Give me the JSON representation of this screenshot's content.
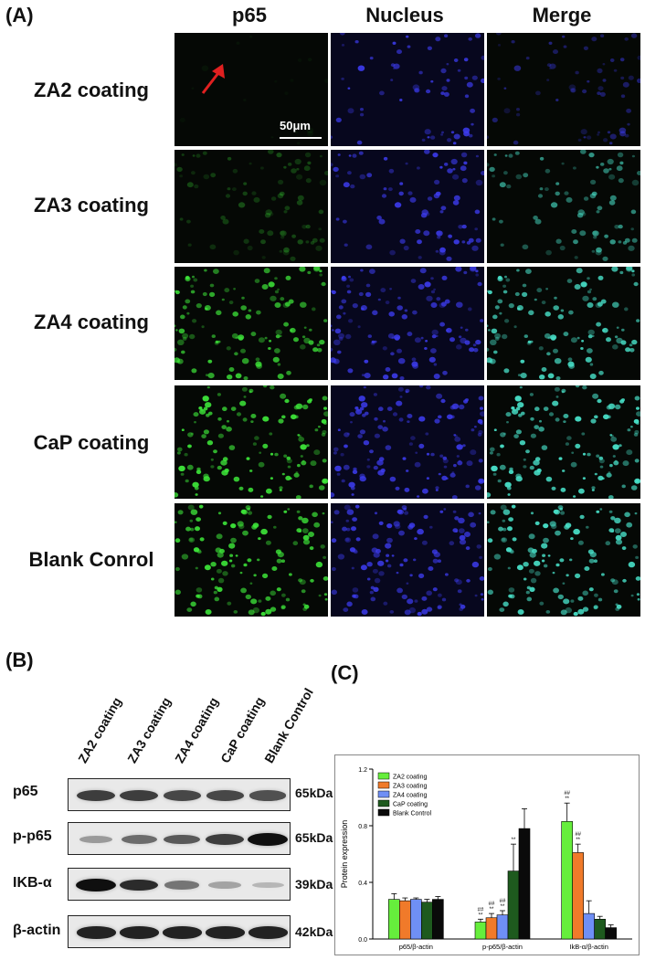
{
  "panelA": {
    "label": "(A)",
    "columns": [
      "p65",
      "Nucleus",
      "Merge"
    ],
    "rows": [
      "ZA2 coating",
      "ZA3 coating",
      "ZA4 coating",
      "CaP coating",
      "Blank Conrol"
    ],
    "scale_bar": "50μm",
    "p65_intensity": [
      0.05,
      0.3,
      0.85,
      0.95,
      0.95
    ],
    "colors": {
      "p65": "#3ee83a",
      "nucleus": "#3d3cf0",
      "merge": "#48e0c8",
      "arrow": "#e02020"
    }
  },
  "panelB": {
    "label": "(B)",
    "lanes": [
      "ZA2 coating",
      "ZA3 coating",
      "ZA4 coating",
      "CaP coating",
      "Blank Control"
    ],
    "blots": [
      {
        "name": "p65",
        "kda": "65kDa",
        "intensity": [
          0.75,
          0.75,
          0.7,
          0.7,
          0.65
        ]
      },
      {
        "name": "p-p65",
        "kda": "65kDa",
        "intensity": [
          0.25,
          0.5,
          0.6,
          0.75,
          1.0
        ]
      },
      {
        "name": "IKB-α",
        "kda": "39kDa",
        "intensity": [
          1.0,
          0.85,
          0.45,
          0.2,
          0.1
        ]
      },
      {
        "name": "β-actin",
        "kda": "42kDa",
        "intensity": [
          0.9,
          0.9,
          0.9,
          0.9,
          0.9
        ]
      }
    ]
  },
  "panelC": {
    "label": "(C)"
  },
  "chart_data": {
    "type": "bar",
    "categories": [
      "p65/β-actin",
      "p-p65/β-actin",
      "IkB-α/β-actin"
    ],
    "ylabel": "Protein expression",
    "ylim": [
      0,
      1.2
    ],
    "yticks": [
      "0.0",
      "0.4",
      "0.8",
      "1.2"
    ],
    "legend_position": "top-left",
    "series": [
      {
        "name": "ZA2 coating",
        "color": "#66ee3c",
        "values": [
          0.28,
          0.12,
          0.83
        ],
        "errors": [
          0.04,
          0.02,
          0.13
        ]
      },
      {
        "name": "ZA3 coating",
        "color": "#f07a2a",
        "values": [
          0.27,
          0.15,
          0.61
        ],
        "errors": [
          0.02,
          0.03,
          0.06
        ]
      },
      {
        "name": "ZA4 coating",
        "color": "#6f8ff5",
        "values": [
          0.28,
          0.17,
          0.18
        ],
        "errors": [
          0.01,
          0.03,
          0.09
        ]
      },
      {
        "name": "CaP coating",
        "color": "#1e5a1e",
        "values": [
          0.26,
          0.48,
          0.14
        ],
        "errors": [
          0.02,
          0.19,
          0.02
        ]
      },
      {
        "name": "Blank Control",
        "color": "#0a0a0a",
        "values": [
          0.28,
          0.78,
          0.08
        ],
        "errors": [
          0.02,
          0.14,
          0.02
        ]
      }
    ],
    "annotations": [
      {
        "category": 1,
        "series": 0,
        "marks": [
          "##",
          "**"
        ]
      },
      {
        "category": 1,
        "series": 1,
        "marks": [
          "##",
          "**"
        ]
      },
      {
        "category": 1,
        "series": 2,
        "marks": [
          "##",
          "**"
        ]
      },
      {
        "category": 1,
        "series": 3,
        "marks": [
          "**"
        ]
      },
      {
        "category": 2,
        "series": 0,
        "marks": [
          "##",
          "**"
        ]
      },
      {
        "category": 2,
        "series": 1,
        "marks": [
          "##",
          "**"
        ]
      }
    ]
  }
}
